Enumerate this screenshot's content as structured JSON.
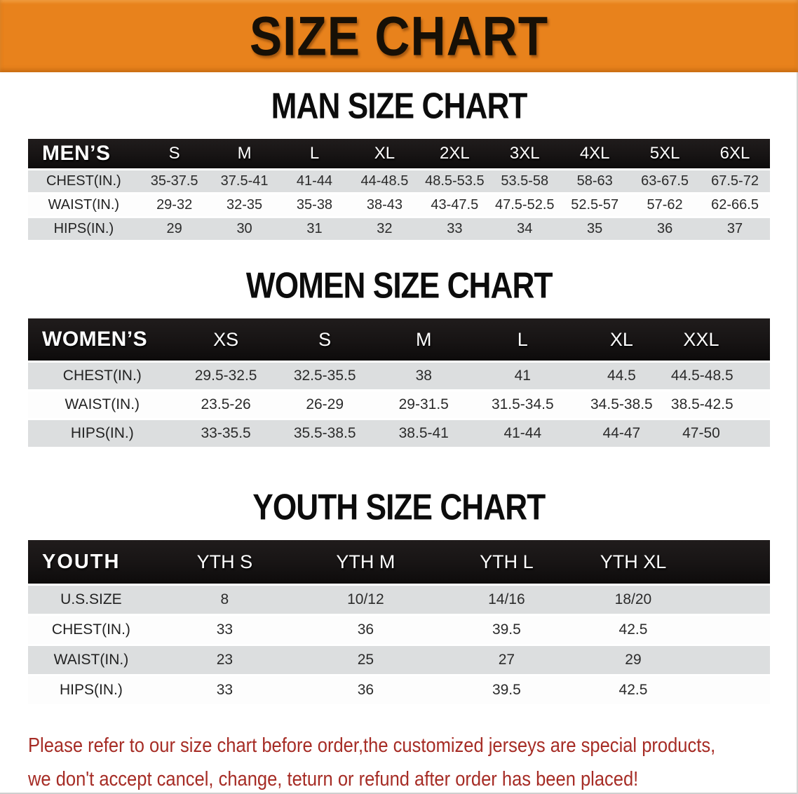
{
  "banner": {
    "title": "SIZE CHART"
  },
  "sections": {
    "men": {
      "title": "MAN SIZE CHART",
      "table": {
        "corner_label": "MEN’S",
        "columns": [
          "S",
          "M",
          "L",
          "XL",
          "2XL",
          "3XL",
          "4XL",
          "5XL",
          "6XL"
        ],
        "rows": [
          {
            "label": "CHEST(IN.)",
            "values": [
              "35-37.5",
              "37.5-41",
              "41-44",
              "44-48.5",
              "48.5-53.5",
              "53.5-58",
              "58-63",
              "63-67.5",
              "67.5-72"
            ]
          },
          {
            "label": "WAIST(IN.)",
            "values": [
              "29-32",
              "32-35",
              "35-38",
              "38-43",
              "43-47.5",
              "47.5-52.5",
              "52.5-57",
              "57-62",
              "62-66.5"
            ]
          },
          {
            "label": "HIPS(IN.)",
            "values": [
              "29",
              "30",
              "31",
              "32",
              "33",
              "34",
              "35",
              "36",
              "37"
            ]
          }
        ]
      }
    },
    "women": {
      "title": "WOMEN SIZE CHART",
      "table": {
        "corner_label": "WOMEN’S",
        "columns": [
          "XS",
          "S",
          "M",
          "L",
          "XL",
          "XXL"
        ],
        "rows": [
          {
            "label": "CHEST(IN.)",
            "values": [
              "29.5-32.5",
              "32.5-35.5",
              "38",
              "41",
              "44.5",
              "44.5-48.5"
            ]
          },
          {
            "label": "WAIST(IN.)",
            "values": [
              "23.5-26",
              "26-29",
              "29-31.5",
              "31.5-34.5",
              "34.5-38.5",
              "38.5-42.5"
            ]
          },
          {
            "label": "HIPS(IN.)",
            "values": [
              "33-35.5",
              "35.5-38.5",
              "38.5-41",
              "41-44",
              "44-47",
              "47-50"
            ]
          }
        ]
      }
    },
    "youth": {
      "title": "YOUTH SIZE CHART",
      "table": {
        "corner_label": "YOUTH",
        "columns": [
          "YTH S",
          "YTH M",
          "YTH L",
          "YTH XL"
        ],
        "rows": [
          {
            "label": "U.S.SIZE",
            "values": [
              "8",
              "10/12",
              "14/16",
              "18/20"
            ]
          },
          {
            "label": "CHEST(IN.)",
            "values": [
              "33",
              "36",
              "39.5",
              "42.5"
            ]
          },
          {
            "label": "WAIST(IN.)",
            "values": [
              "23",
              "25",
              "27",
              "29"
            ]
          },
          {
            "label": "HIPS(IN.)",
            "values": [
              "33",
              "36",
              "39.5",
              "42.5"
            ]
          }
        ]
      }
    }
  },
  "footer": {
    "line1": "Please refer to our size chart before order,the customized jerseys are special products,",
    "line2": "we don't accept cancel, change, teturn or refund after order has been placed!"
  },
  "colors": {
    "banner_bg": "#E8821C",
    "banner_text": "#171006",
    "header_bg": "#171414",
    "header_text": "#FFFFFF",
    "stripe_gray": "#DCDEDF",
    "stripe_white": "#FDFDFD",
    "cell_text": "#2B2B2B",
    "title_text": "#0C0C0C",
    "notice_text": "#A62C25"
  }
}
